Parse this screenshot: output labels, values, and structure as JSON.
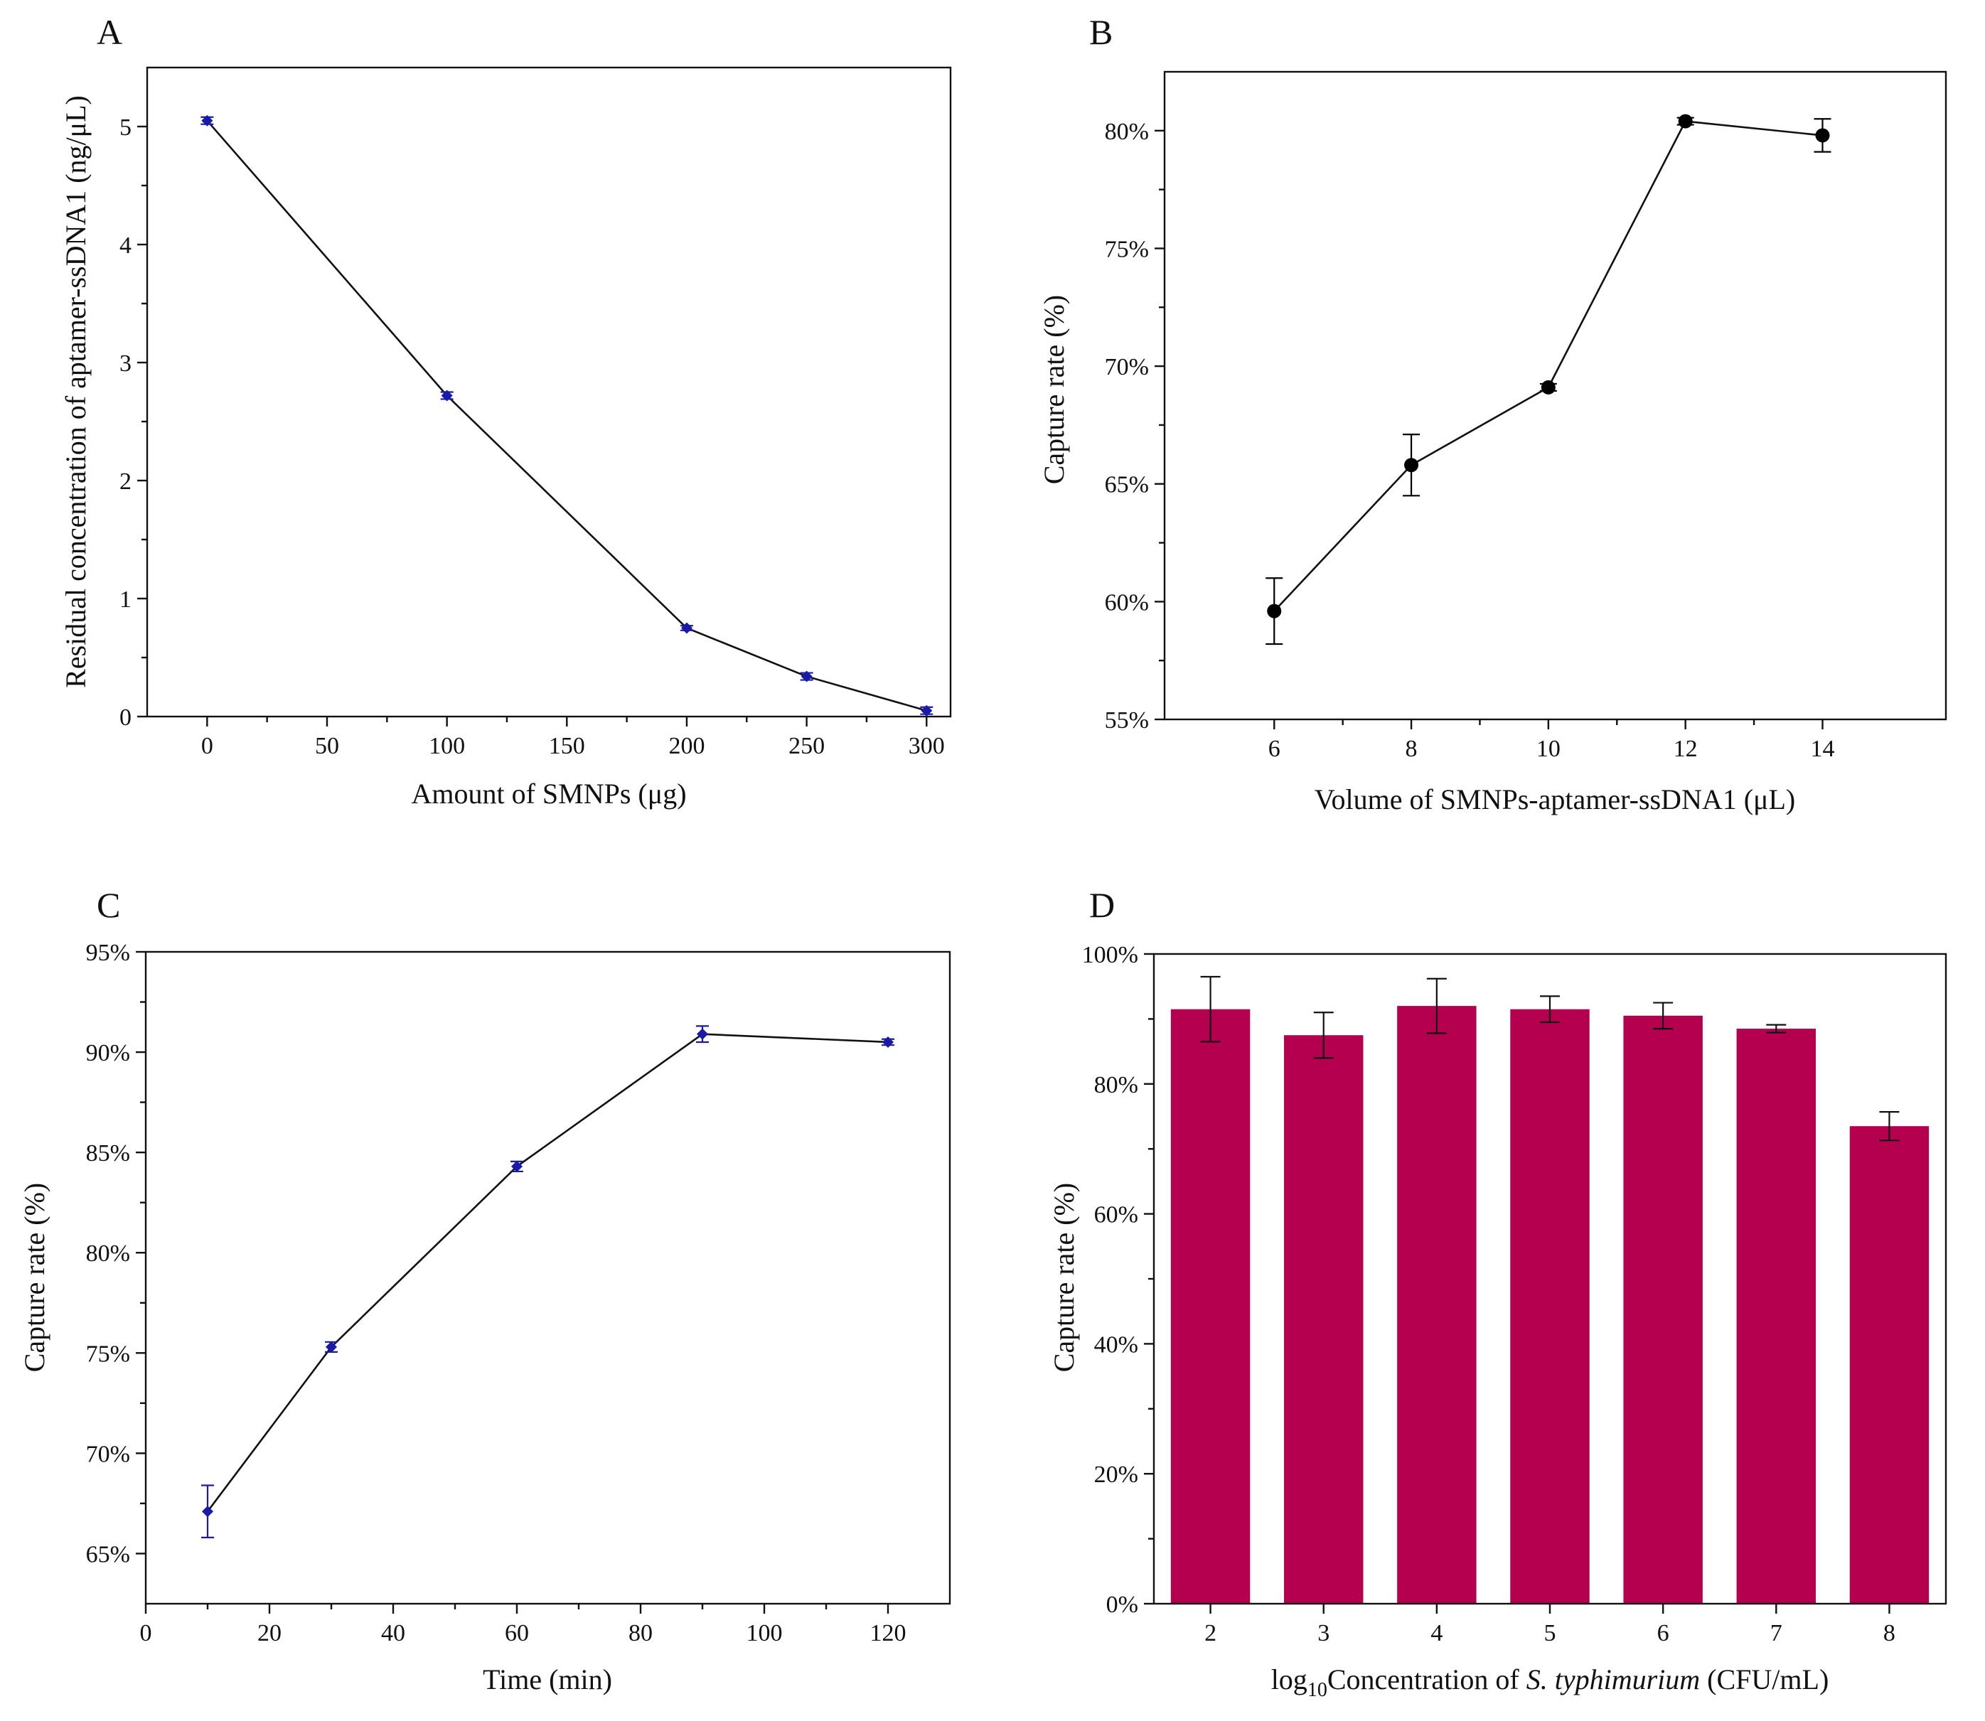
{
  "colors": {
    "marker_blue": "#1a1aa8",
    "marker_black": "#000000",
    "bar_fill": "#b5004f",
    "axis": "#111111"
  },
  "chart_data": [
    {
      "panel": "A",
      "type": "line",
      "xlabel": "Amount of SMNPs (μg)",
      "ylabel": "Residual concentration of aptamer-ssDNA1 (ng/μL)",
      "xlim": [
        -25,
        310
      ],
      "ylim": [
        0,
        5.5
      ],
      "x_ticks": [
        "0",
        "50",
        "100",
        "150",
        "200",
        "250",
        "300"
      ],
      "y_ticks": [
        "0",
        "1",
        "2",
        "3",
        "4",
        "5"
      ],
      "x": [
        0,
        100,
        200,
        250,
        300
      ],
      "y": [
        5.05,
        2.72,
        0.75,
        0.34,
        0.05
      ],
      "error": [
        0.03,
        0.03,
        0.02,
        0.03,
        0.03
      ],
      "marker": "diamond"
    },
    {
      "panel": "B",
      "type": "line",
      "xlabel": "Volume of SMNPs-aptamer-ssDNA1 (μL)",
      "ylabel": "Capture rate (%)",
      "xlim": [
        4.4,
        15.8
      ],
      "ylim": [
        55,
        82.5
      ],
      "x_ticks": [
        "6",
        "8",
        "10",
        "12",
        "14"
      ],
      "y_ticks": [
        "55%",
        "60%",
        "65%",
        "70%",
        "75%",
        "80%"
      ],
      "x": [
        6,
        8,
        10,
        12,
        14
      ],
      "y": [
        59.6,
        65.8,
        69.1,
        80.4,
        79.8
      ],
      "error": [
        1.4,
        1.3,
        0.15,
        0.15,
        0.7
      ],
      "marker": "circle"
    },
    {
      "panel": "C",
      "type": "line",
      "xlabel": "Time (min)",
      "ylabel": "Capture rate (%)",
      "xlim": [
        0,
        130
      ],
      "ylim": [
        62.5,
        95
      ],
      "x_ticks": [
        "0",
        "20",
        "40",
        "60",
        "80",
        "100",
        "120"
      ],
      "y_ticks": [
        "65%",
        "70%",
        "75%",
        "80%",
        "85%",
        "90%",
        "95%"
      ],
      "x": [
        10,
        30,
        60,
        90,
        120
      ],
      "y": [
        67.1,
        75.3,
        84.3,
        90.9,
        90.5
      ],
      "error": [
        1.3,
        0.25,
        0.25,
        0.4,
        0.15
      ],
      "marker": "diamond"
    },
    {
      "panel": "D",
      "type": "bar",
      "xlabel_prefix": "log",
      "xlabel_sub": "10",
      "xlabel_main": "Concentration of ",
      "xlabel_italic": "S. typhimurium",
      "xlabel_suffix": " (CFU/mL)",
      "ylabel": "Capture rate (%)",
      "ylim": [
        0,
        100
      ],
      "categories": [
        "2",
        "3",
        "4",
        "5",
        "6",
        "7",
        "8"
      ],
      "y_ticks": [
        "0%",
        "20%",
        "40%",
        "60%",
        "80%",
        "100%"
      ],
      "values": [
        91.5,
        87.5,
        92.0,
        91.5,
        90.5,
        88.5,
        73.5
      ],
      "error": [
        5.0,
        3.5,
        4.2,
        2.0,
        2.0,
        0.6,
        2.2
      ]
    }
  ]
}
